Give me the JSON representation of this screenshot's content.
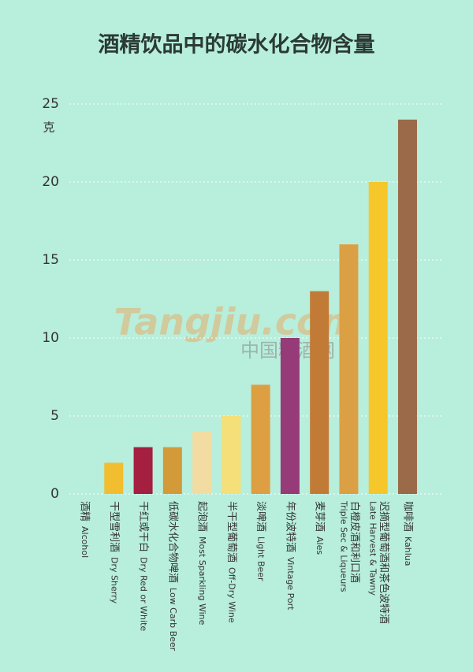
{
  "chart_data": {
    "type": "bar",
    "title": "酒精饮品中的碳水化合物含量",
    "y_label": "克",
    "categories": [
      "酒精",
      "干型雪利酒",
      "干红或干白",
      "低碳水化合物啤酒",
      "起泡酒",
      "半干型葡萄酒",
      "淡啤酒",
      "年份波特酒",
      "麦芽酒",
      "白橙皮酒和利口酒",
      "迟摘型葡萄酒和茶色波特酒",
      "咖啡酒"
    ],
    "categories_en": [
      "Alcohol",
      "Dry Sherry",
      "Dry Red or White",
      "Low Carb Beer",
      "Most Sparkling Wine",
      "Off-Dry Wine",
      "Light Beer",
      "Vintage Port",
      "Ales",
      "Triple Sec & Liqueurs",
      "Late Harvest & Tawny",
      "Kahlua"
    ],
    "values": [
      0,
      2,
      3,
      3,
      4,
      5,
      7,
      10,
      13,
      16,
      20,
      24
    ],
    "colors": [
      "#c9a05e",
      "#f2bd2e",
      "#a41f40",
      "#d39a3a",
      "#f3dca2",
      "#f5df78",
      "#dd9f42",
      "#963a78",
      "#c27b37",
      "#dca044",
      "#f5c72b",
      "#9a6a49"
    ],
    "ylim": [
      0,
      25
    ],
    "yticks": [
      0,
      5,
      10,
      15,
      20,
      25
    ],
    "grid": true,
    "watermark": [
      "Tangjiu.com",
      "中国糖酒网"
    ]
  }
}
